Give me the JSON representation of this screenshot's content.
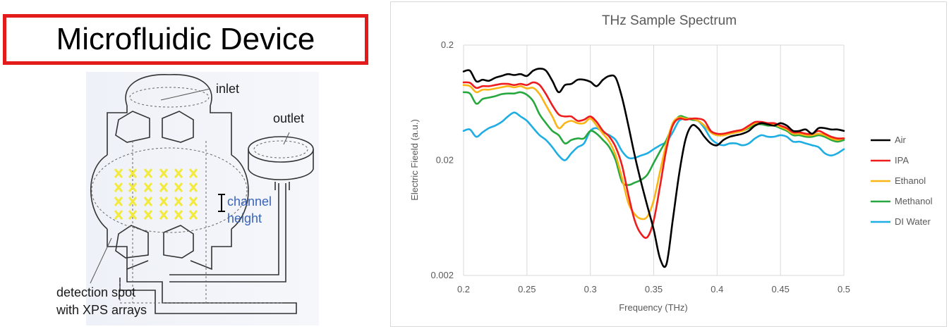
{
  "left_panel": {
    "title": "Microfluidic Device",
    "title_border_color": "#e21a1a",
    "labels": {
      "inlet": "inlet",
      "outlet": "outlet",
      "channel": "channel",
      "height": "height",
      "detection_line1": "detection spot",
      "detection_line2": "with XPS arrays"
    },
    "xps_color": "#f2ea3c",
    "label_accent_color": "#3a64b8"
  },
  "chart_data": {
    "type": "line",
    "title": "THz Sample Spectrum",
    "xlabel": "Frequency (THz)",
    "ylabel": "Electric Fieeld (a.u.)",
    "xlim": [
      0.2,
      0.5
    ],
    "ylim": [
      0.002,
      0.2
    ],
    "yscale": "log",
    "xticks": [
      "0.2",
      "0.25",
      "0.3",
      "0.35",
      "0.4",
      "0.45",
      "0.5"
    ],
    "yticks": [
      "0.002",
      "0.02",
      "0.2"
    ],
    "grid": "vertical",
    "legend_position": "right",
    "series": [
      {
        "name": "Air",
        "color": "#000000",
        "x": [
          0.2,
          0.205,
          0.21,
          0.215,
          0.22,
          0.225,
          0.23,
          0.235,
          0.24,
          0.245,
          0.25,
          0.255,
          0.26,
          0.265,
          0.27,
          0.275,
          0.28,
          0.285,
          0.29,
          0.295,
          0.3,
          0.305,
          0.31,
          0.315,
          0.32,
          0.325,
          0.33,
          0.335,
          0.34,
          0.345,
          0.35,
          0.355,
          0.36,
          0.365,
          0.37,
          0.375,
          0.38,
          0.385,
          0.39,
          0.395,
          0.4,
          0.405,
          0.41,
          0.415,
          0.42,
          0.425,
          0.43,
          0.435,
          0.44,
          0.445,
          0.45,
          0.455,
          0.46,
          0.465,
          0.47,
          0.475,
          0.48,
          0.485,
          0.49,
          0.495,
          0.5
        ],
        "y": [
          0.118,
          0.12,
          0.097,
          0.1,
          0.098,
          0.104,
          0.108,
          0.112,
          0.11,
          0.112,
          0.108,
          0.12,
          0.125,
          0.12,
          0.098,
          0.078,
          0.09,
          0.092,
          0.1,
          0.1,
          0.096,
          0.088,
          0.1,
          0.108,
          0.104,
          0.07,
          0.04,
          0.022,
          0.013,
          0.008,
          0.005,
          0.0028,
          0.0025,
          0.006,
          0.015,
          0.03,
          0.04,
          0.038,
          0.032,
          0.028,
          0.027,
          0.03,
          0.032,
          0.033,
          0.034,
          0.036,
          0.04,
          0.042,
          0.041,
          0.04,
          0.042,
          0.04,
          0.036,
          0.036,
          0.037,
          0.034,
          0.038,
          0.038,
          0.037,
          0.037,
          0.036
        ]
      },
      {
        "name": "IPA",
        "color": "#ee1c1c",
        "x": [
          0.2,
          0.205,
          0.21,
          0.215,
          0.22,
          0.225,
          0.23,
          0.235,
          0.24,
          0.245,
          0.25,
          0.255,
          0.26,
          0.265,
          0.27,
          0.275,
          0.28,
          0.285,
          0.29,
          0.295,
          0.3,
          0.305,
          0.31,
          0.315,
          0.32,
          0.325,
          0.33,
          0.335,
          0.34,
          0.345,
          0.35,
          0.355,
          0.36,
          0.365,
          0.37,
          0.375,
          0.38,
          0.385,
          0.39,
          0.395,
          0.4,
          0.405,
          0.41,
          0.415,
          0.42,
          0.425,
          0.43,
          0.435,
          0.44,
          0.445,
          0.45,
          0.455,
          0.46,
          0.465,
          0.47,
          0.475,
          0.48,
          0.485,
          0.49,
          0.495,
          0.5
        ],
        "y": [
          0.095,
          0.094,
          0.085,
          0.088,
          0.088,
          0.09,
          0.092,
          0.092,
          0.09,
          0.092,
          0.09,
          0.095,
          0.09,
          0.075,
          0.06,
          0.05,
          0.048,
          0.048,
          0.044,
          0.045,
          0.048,
          0.043,
          0.036,
          0.032,
          0.026,
          0.018,
          0.01,
          0.006,
          0.0046,
          0.0043,
          0.006,
          0.012,
          0.025,
          0.04,
          0.046,
          0.045,
          0.046,
          0.046,
          0.044,
          0.036,
          0.034,
          0.034,
          0.035,
          0.036,
          0.037,
          0.04,
          0.043,
          0.043,
          0.042,
          0.042,
          0.04,
          0.038,
          0.035,
          0.035,
          0.034,
          0.034,
          0.036,
          0.034,
          0.032,
          0.031,
          0.031
        ]
      },
      {
        "name": "Ethanol",
        "color": "#fbb415",
        "x": [
          0.2,
          0.205,
          0.21,
          0.215,
          0.22,
          0.225,
          0.23,
          0.235,
          0.24,
          0.245,
          0.25,
          0.255,
          0.26,
          0.265,
          0.27,
          0.275,
          0.28,
          0.285,
          0.29,
          0.295,
          0.3,
          0.305,
          0.31,
          0.315,
          0.32,
          0.325,
          0.33,
          0.335,
          0.34,
          0.345,
          0.35,
          0.355,
          0.36,
          0.365,
          0.37,
          0.375,
          0.38,
          0.385,
          0.39,
          0.395,
          0.4,
          0.405,
          0.41,
          0.415,
          0.42,
          0.425,
          0.43,
          0.435,
          0.44,
          0.445,
          0.45,
          0.455,
          0.46,
          0.465,
          0.47,
          0.475,
          0.48,
          0.485,
          0.49,
          0.495,
          0.5
        ],
        "y": [
          0.09,
          0.088,
          0.078,
          0.082,
          0.082,
          0.084,
          0.086,
          0.088,
          0.086,
          0.088,
          0.084,
          0.085,
          0.075,
          0.06,
          0.048,
          0.038,
          0.042,
          0.044,
          0.042,
          0.042,
          0.046,
          0.04,
          0.034,
          0.029,
          0.022,
          0.014,
          0.0085,
          0.0068,
          0.0062,
          0.0065,
          0.009,
          0.016,
          0.028,
          0.042,
          0.047,
          0.046,
          0.046,
          0.044,
          0.04,
          0.035,
          0.033,
          0.033,
          0.034,
          0.035,
          0.036,
          0.039,
          0.042,
          0.042,
          0.041,
          0.041,
          0.039,
          0.037,
          0.034,
          0.034,
          0.033,
          0.033,
          0.034,
          0.033,
          0.031,
          0.03,
          0.031
        ]
      },
      {
        "name": "Methanol",
        "color": "#27a83f",
        "x": [
          0.2,
          0.205,
          0.21,
          0.215,
          0.22,
          0.225,
          0.23,
          0.235,
          0.24,
          0.245,
          0.25,
          0.255,
          0.26,
          0.265,
          0.27,
          0.275,
          0.28,
          0.285,
          0.29,
          0.295,
          0.3,
          0.305,
          0.31,
          0.315,
          0.32,
          0.325,
          0.33,
          0.335,
          0.34,
          0.345,
          0.35,
          0.355,
          0.36,
          0.365,
          0.37,
          0.375,
          0.38,
          0.385,
          0.39,
          0.395,
          0.4,
          0.405,
          0.41,
          0.415,
          0.42,
          0.425,
          0.43,
          0.435,
          0.44,
          0.445,
          0.45,
          0.455,
          0.46,
          0.465,
          0.47,
          0.475,
          0.48,
          0.485,
          0.49,
          0.495,
          0.5
        ],
        "y": [
          0.078,
          0.076,
          0.062,
          0.068,
          0.07,
          0.072,
          0.075,
          0.076,
          0.076,
          0.078,
          0.074,
          0.065,
          0.05,
          0.042,
          0.036,
          0.033,
          0.028,
          0.03,
          0.031,
          0.031,
          0.036,
          0.034,
          0.03,
          0.026,
          0.02,
          0.013,
          0.0122,
          0.0128,
          0.0135,
          0.015,
          0.019,
          0.024,
          0.03,
          0.04,
          0.048,
          0.047,
          0.045,
          0.044,
          0.04,
          0.035,
          0.033,
          0.033,
          0.034,
          0.035,
          0.036,
          0.038,
          0.041,
          0.041,
          0.04,
          0.04,
          0.038,
          0.036,
          0.033,
          0.033,
          0.032,
          0.032,
          0.033,
          0.032,
          0.03,
          0.029,
          0.03
        ]
      },
      {
        "name": "DI Water",
        "color": "#1eaee4",
        "x": [
          0.2,
          0.205,
          0.21,
          0.215,
          0.22,
          0.225,
          0.23,
          0.235,
          0.24,
          0.245,
          0.25,
          0.255,
          0.26,
          0.265,
          0.27,
          0.275,
          0.28,
          0.285,
          0.29,
          0.295,
          0.3,
          0.305,
          0.31,
          0.315,
          0.32,
          0.325,
          0.33,
          0.335,
          0.34,
          0.345,
          0.35,
          0.355,
          0.36,
          0.365,
          0.37,
          0.375,
          0.38,
          0.385,
          0.39,
          0.395,
          0.4,
          0.405,
          0.41,
          0.415,
          0.42,
          0.425,
          0.43,
          0.435,
          0.44,
          0.445,
          0.45,
          0.455,
          0.46,
          0.465,
          0.47,
          0.475,
          0.48,
          0.485,
          0.49,
          0.495,
          0.5
        ],
        "y": [
          0.036,
          0.037,
          0.032,
          0.035,
          0.038,
          0.04,
          0.043,
          0.048,
          0.052,
          0.048,
          0.044,
          0.038,
          0.033,
          0.03,
          0.026,
          0.022,
          0.02,
          0.023,
          0.026,
          0.028,
          0.036,
          0.038,
          0.035,
          0.033,
          0.03,
          0.024,
          0.021,
          0.021,
          0.022,
          0.023,
          0.025,
          0.027,
          0.029,
          0.035,
          0.044,
          0.046,
          0.046,
          0.044,
          0.038,
          0.031,
          0.028,
          0.027,
          0.028,
          0.028,
          0.027,
          0.028,
          0.031,
          0.033,
          0.032,
          0.032,
          0.033,
          0.032,
          0.029,
          0.029,
          0.028,
          0.027,
          0.026,
          0.023,
          0.022,
          0.023,
          0.025
        ]
      }
    ]
  }
}
